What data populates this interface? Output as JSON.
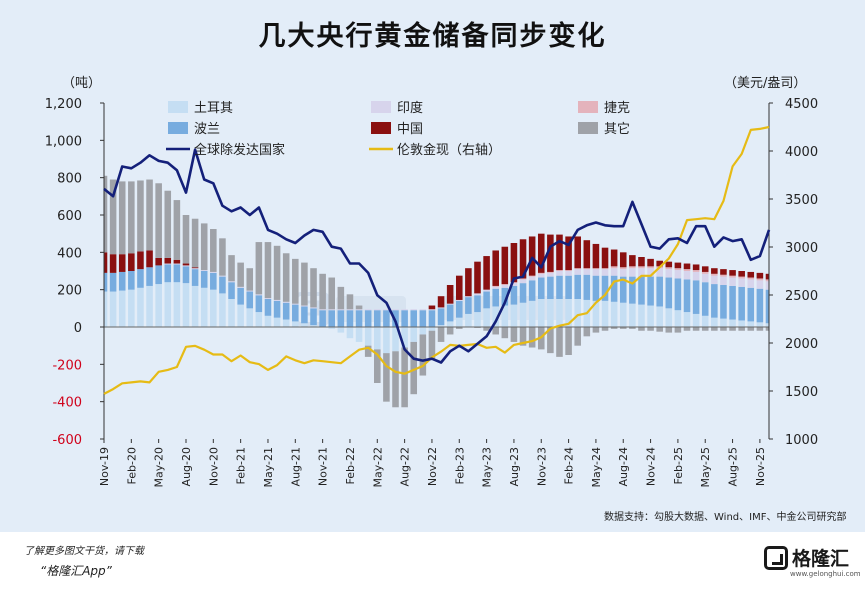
{
  "title": "几大央行黄金储备同步变化",
  "unit_left": "（吨）",
  "unit_right": "（美元/盎司）",
  "source": "数据支持：勾股大数据、Wind、IMF、中金公司研究部",
  "footer": {
    "line1": "了解更多图文干货，请下载",
    "line2": "“格隆汇App”"
  },
  "brand": {
    "name": "格隆汇",
    "url": "www.gelonghui.com"
  },
  "colors": {
    "turkey": "#c5def3",
    "india": "#d7d4ec",
    "czech": "#e4b3bc",
    "poland": "#77acdf",
    "china": "#8a1010",
    "other": "#9fa2a8",
    "total": "#14207a",
    "gold": "#e6bb15",
    "background": "#e3edf8"
  },
  "chart_data": {
    "type": "bar",
    "stacked": true,
    "x_tick_labels": [
      "Nov-19",
      "Feb-20",
      "May-20",
      "Aug-20",
      "Nov-20",
      "Feb-21",
      "May-21",
      "Aug-21",
      "Nov-21",
      "Feb-22",
      "May-22",
      "Aug-22",
      "Nov-22",
      "Feb-23",
      "May-23",
      "Aug-23",
      "Nov-23",
      "Feb-24",
      "May-24",
      "Aug-24",
      "Nov-24",
      "Feb-25",
      "May-25",
      "Aug-25",
      "Nov-25"
    ],
    "y_left": {
      "min": -600,
      "max": 1200,
      "ticks": [
        "-600",
        "-400",
        "-200",
        "0",
        "200",
        "400",
        "600",
        "800",
        "1,000",
        "1,200"
      ]
    },
    "y_right": {
      "min": 1000,
      "max": 4500,
      "ticks": [
        "1000",
        "1500",
        "2000",
        "2500",
        "3000",
        "3500",
        "4000",
        "4500"
      ]
    },
    "legend": [
      {
        "key": "turkey",
        "label": "土耳其"
      },
      {
        "key": "india",
        "label": "印度"
      },
      {
        "key": "czech",
        "label": "捷克"
      },
      {
        "key": "poland",
        "label": "波兰"
      },
      {
        "key": "china",
        "label": "中国"
      },
      {
        "key": "other",
        "label": "其它"
      },
      {
        "key": "total",
        "label": "全球除发达国家"
      },
      {
        "key": "gold",
        "label": "伦敦金现（右轴）"
      }
    ],
    "bar_order": [
      "turkey",
      "poland",
      "india",
      "czech",
      "china",
      "other"
    ],
    "series": {
      "turkey": [
        190,
        190,
        195,
        200,
        210,
        220,
        230,
        240,
        240,
        235,
        220,
        210,
        200,
        180,
        150,
        120,
        100,
        80,
        60,
        50,
        40,
        30,
        20,
        10,
        0,
        -10,
        -30,
        -60,
        -80,
        -100,
        -120,
        -140,
        -130,
        -110,
        -80,
        -40,
        -20,
        10,
        30,
        50,
        70,
        80,
        100,
        110,
        115,
        120,
        130,
        140,
        150,
        150,
        150,
        150,
        150,
        145,
        140,
        140,
        135,
        130,
        125,
        120,
        115,
        110,
        100,
        90,
        80,
        70,
        60,
        50,
        45,
        40,
        35,
        30,
        25,
        20
      ],
      "poland": [
        100,
        100,
        100,
        100,
        100,
        100,
        100,
        95,
        95,
        90,
        90,
        90,
        90,
        90,
        90,
        90,
        90,
        90,
        90,
        90,
        90,
        90,
        90,
        90,
        90,
        90,
        90,
        90,
        90,
        90,
        90,
        90,
        90,
        90,
        90,
        90,
        90,
        90,
        90,
        90,
        90,
        90,
        90,
        95,
        95,
        100,
        105,
        110,
        115,
        120,
        125,
        125,
        130,
        135,
        135,
        135,
        140,
        140,
        145,
        150,
        155,
        160,
        165,
        170,
        175,
        180,
        180,
        180,
        180,
        180,
        180,
        180,
        180,
        180
      ],
      "india": [
        0,
        0,
        0,
        0,
        0,
        0,
        0,
        5,
        5,
        5,
        5,
        5,
        5,
        5,
        5,
        5,
        5,
        5,
        5,
        5,
        5,
        5,
        5,
        5,
        5,
        5,
        5,
        5,
        5,
        5,
        5,
        5,
        5,
        5,
        5,
        5,
        5,
        5,
        5,
        5,
        5,
        10,
        10,
        10,
        15,
        15,
        20,
        20,
        20,
        20,
        25,
        25,
        30,
        30,
        35,
        35,
        40,
        40,
        45,
        45,
        45,
        45,
        45,
        45,
        45,
        45,
        45,
        45,
        45,
        45,
        45,
        45,
        45,
        45
      ],
      "czech": [
        0,
        0,
        0,
        0,
        0,
        0,
        0,
        0,
        0,
        0,
        0,
        0,
        0,
        0,
        0,
        0,
        0,
        0,
        0,
        0,
        0,
        0,
        0,
        0,
        0,
        0,
        0,
        0,
        0,
        0,
        0,
        0,
        0,
        0,
        0,
        0,
        0,
        0,
        0,
        0,
        0,
        0,
        0,
        5,
        5,
        5,
        5,
        5,
        5,
        5,
        5,
        5,
        5,
        5,
        5,
        5,
        10,
        10,
        10,
        10,
        10,
        10,
        10,
        10,
        10,
        10,
        10,
        10,
        10,
        10,
        10,
        10,
        10,
        10
      ],
      "china": [
        110,
        100,
        95,
        95,
        95,
        90,
        40,
        30,
        20,
        10,
        5,
        0,
        0,
        0,
        0,
        0,
        0,
        0,
        0,
        0,
        0,
        0,
        0,
        0,
        0,
        0,
        0,
        0,
        0,
        0,
        0,
        0,
        0,
        0,
        0,
        0,
        20,
        60,
        100,
        130,
        150,
        170,
        180,
        190,
        200,
        210,
        210,
        210,
        210,
        200,
        190,
        180,
        170,
        150,
        130,
        110,
        90,
        80,
        60,
        50,
        40,
        30,
        30,
        30,
        30,
        30,
        30,
        30,
        30,
        30,
        30,
        30,
        30,
        30
      ],
      "other": [
        410,
        400,
        390,
        385,
        380,
        380,
        400,
        360,
        320,
        260,
        260,
        250,
        230,
        200,
        140,
        130,
        120,
        280,
        300,
        290,
        260,
        240,
        230,
        210,
        190,
        170,
        120,
        80,
        20,
        -60,
        -180,
        -260,
        -300,
        -320,
        -280,
        -220,
        -150,
        -80,
        -40,
        -10,
        0,
        -5,
        -20,
        -40,
        -60,
        -80,
        -100,
        -110,
        -120,
        -140,
        -160,
        -150,
        -100,
        -50,
        -30,
        -20,
        -10,
        -10,
        -10,
        -20,
        -20,
        -25,
        -30,
        -30,
        -20,
        -20,
        -20,
        -20,
        -20,
        -20,
        -20,
        -20,
        -20,
        -20
      ],
      "total": [
        740,
        700,
        860,
        850,
        880,
        920,
        890,
        880,
        840,
        720,
        950,
        790,
        770,
        650,
        620,
        640,
        600,
        640,
        520,
        500,
        470,
        450,
        490,
        520,
        510,
        430,
        420,
        340,
        340,
        290,
        170,
        130,
        30,
        -120,
        -170,
        -180,
        -170,
        -190,
        -130,
        -100,
        -130,
        -90,
        -50,
        30,
        130,
        260,
        270,
        370,
        320,
        430,
        460,
        440,
        520,
        545,
        560,
        545,
        540,
        540,
        670,
        550,
        430,
        420,
        470,
        475,
        450,
        540,
        540,
        430,
        480,
        460,
        470,
        360,
        380,
        520
      ],
      "gold": [
        1470,
        1520,
        1580,
        1590,
        1600,
        1590,
        1700,
        1720,
        1750,
        1960,
        1970,
        1930,
        1880,
        1880,
        1810,
        1870,
        1800,
        1780,
        1720,
        1770,
        1860,
        1820,
        1790,
        1820,
        1810,
        1800,
        1790,
        1860,
        1930,
        1950,
        1880,
        1760,
        1700,
        1680,
        1720,
        1760,
        1850,
        1910,
        1980,
        1970,
        1980,
        1990,
        1950,
        1960,
        1900,
        1980,
        2000,
        2020,
        2060,
        2150,
        2180,
        2200,
        2290,
        2310,
        2420,
        2500,
        2640,
        2660,
        2620,
        2700,
        2700,
        2790,
        2880,
        3030,
        3280,
        3290,
        3300,
        3290,
        3480,
        3840,
        3970,
        4220,
        4230,
        4250
      ]
    },
    "note": "monthly values, Nov-2019 to Nov-2025; bars stacked in tonnes (left axis), total line in tonnes (left axis), gold line in USD/oz (right axis)"
  }
}
